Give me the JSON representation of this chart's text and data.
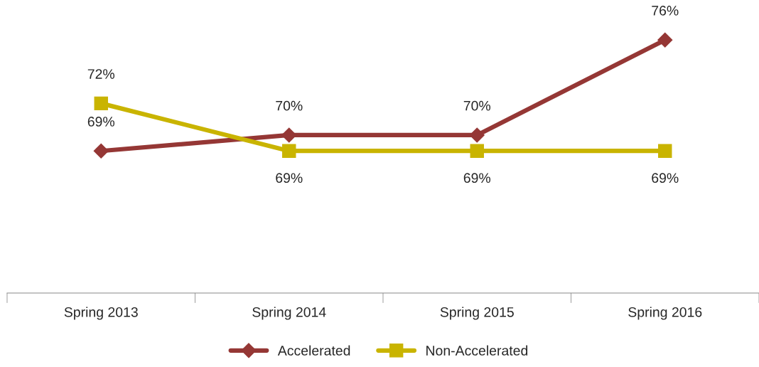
{
  "chart_data": {
    "type": "line",
    "categories": [
      "Spring 2013",
      "Spring 2014",
      "Spring 2015",
      "Spring 2016"
    ],
    "series": [
      {
        "name": "Accelerated",
        "color": "#953735",
        "marker": "diamond",
        "values": [
          69,
          70,
          70,
          76
        ],
        "value_labels": [
          "69%",
          "70%",
          "70%",
          "76%"
        ]
      },
      {
        "name": "Non-Accelerated",
        "color": "#c9b400",
        "marker": "square",
        "values": [
          72,
          69,
          69,
          69
        ],
        "value_labels": [
          "72%",
          "69%",
          "69%",
          "69%"
        ]
      }
    ],
    "legend": "bottom",
    "line_style": "solid"
  }
}
